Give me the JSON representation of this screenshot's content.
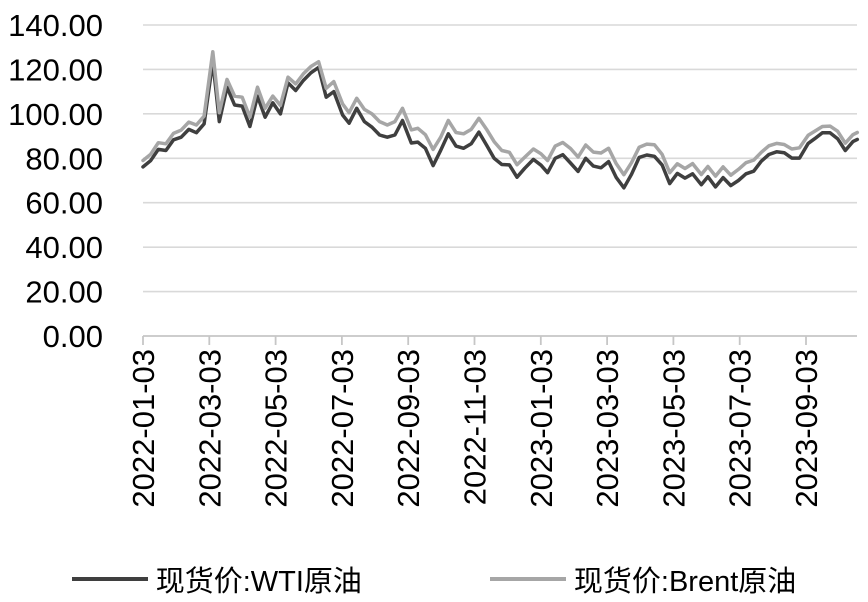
{
  "chart_data": {
    "type": "line",
    "title": "",
    "xlabel": "",
    "ylabel": "",
    "grid": "horizontal",
    "legend_position": "bottom",
    "ylim": [
      0,
      140
    ],
    "yticks": [
      0,
      20,
      40,
      60,
      80,
      100,
      120,
      140
    ],
    "ytick_labels": [
      "0.00",
      "20.00",
      "40.00",
      "60.00",
      "80.00",
      "100.00",
      "120.00",
      "140.00"
    ],
    "xtick_labels": [
      "2022-01-03",
      "2022-03-03",
      "2022-05-03",
      "2022-07-03",
      "2022-09-03",
      "2022-11-03",
      "2023-01-03",
      "2023-03-03",
      "2023-05-03",
      "2023-07-03",
      "2023-09-03"
    ],
    "x": [
      "2022-01-03",
      "2022-01-10",
      "2022-01-17",
      "2022-01-24",
      "2022-01-31",
      "2022-02-07",
      "2022-02-14",
      "2022-02-21",
      "2022-02-28",
      "2022-03-08",
      "2022-03-14",
      "2022-03-21",
      "2022-03-28",
      "2022-04-04",
      "2022-04-11",
      "2022-04-18",
      "2022-04-25",
      "2022-05-02",
      "2022-05-09",
      "2022-05-16",
      "2022-05-23",
      "2022-05-30",
      "2022-06-06",
      "2022-06-13",
      "2022-06-20",
      "2022-06-27",
      "2022-07-05",
      "2022-07-11",
      "2022-07-18",
      "2022-07-25",
      "2022-08-01",
      "2022-08-08",
      "2022-08-15",
      "2022-08-22",
      "2022-08-29",
      "2022-09-06",
      "2022-09-12",
      "2022-09-19",
      "2022-09-26",
      "2022-10-03",
      "2022-10-10",
      "2022-10-17",
      "2022-10-24",
      "2022-10-31",
      "2022-11-07",
      "2022-11-14",
      "2022-11-21",
      "2022-11-28",
      "2022-12-05",
      "2022-12-12",
      "2022-12-19",
      "2022-12-27",
      "2023-01-03",
      "2023-01-09",
      "2023-01-16",
      "2023-01-23",
      "2023-01-30",
      "2023-02-06",
      "2023-02-13",
      "2023-02-20",
      "2023-02-27",
      "2023-03-06",
      "2023-03-13",
      "2023-03-20",
      "2023-03-27",
      "2023-04-03",
      "2023-04-10",
      "2023-04-17",
      "2023-04-24",
      "2023-05-01",
      "2023-05-08",
      "2023-05-15",
      "2023-05-22",
      "2023-05-30",
      "2023-06-05",
      "2023-06-12",
      "2023-06-19",
      "2023-06-26",
      "2023-07-03",
      "2023-07-10",
      "2023-07-17",
      "2023-07-24",
      "2023-07-31",
      "2023-08-07",
      "2023-08-14",
      "2023-08-21",
      "2023-08-28",
      "2023-09-05",
      "2023-09-11",
      "2023-09-18",
      "2023-09-25",
      "2023-10-02",
      "2023-10-09",
      "2023-10-16",
      "2023-10-20"
    ],
    "series": [
      {
        "name": "现货价:WTI原油",
        "color": "#3f3f3f",
        "values": [
          76.1,
          78.9,
          84.0,
          83.5,
          88.3,
          89.5,
          93.0,
          91.5,
          95.5,
          123.7,
          96.5,
          112.0,
          104.0,
          103.5,
          94.3,
          108.0,
          98.5,
          105.0,
          100.0,
          114.0,
          110.5,
          115.0,
          118.5,
          120.9,
          107.5,
          110.0,
          99.5,
          95.8,
          102.5,
          96.5,
          94.0,
          90.5,
          89.5,
          90.5,
          97.0,
          86.9,
          87.3,
          84.5,
          76.7,
          83.6,
          91.0,
          85.5,
          84.5,
          86.5,
          91.8,
          86.0,
          80.0,
          77.2,
          77.0,
          71.5,
          75.5,
          79.5,
          76.9,
          73.5,
          80.0,
          81.6,
          77.9,
          74.1,
          80.0,
          76.5,
          75.7,
          78.5,
          71.3,
          66.7,
          72.8,
          80.4,
          81.5,
          80.9,
          77.0,
          68.6,
          73.2,
          71.1,
          73.0,
          68.1,
          71.7,
          67.1,
          71.3,
          67.7,
          70.0,
          73.0,
          74.2,
          78.7,
          81.7,
          82.9,
          82.5,
          80.1,
          80.1,
          86.7,
          88.8,
          91.5,
          91.5,
          88.8,
          83.5,
          87.5,
          88.5
        ]
      },
      {
        "name": "现货价:Brent原油",
        "color": "#a6a6a6",
        "values": [
          79.0,
          81.8,
          87.0,
          86.5,
          91.2,
          92.7,
          96.3,
          95.0,
          99.0,
          128.0,
          100.5,
          115.5,
          108.0,
          107.5,
          98.5,
          112.0,
          102.5,
          108.0,
          103.8,
          116.5,
          113.5,
          118.0,
          121.3,
          123.5,
          111.5,
          114.5,
          104.5,
          100.5,
          107.0,
          102.0,
          100.0,
          96.5,
          95.0,
          96.5,
          102.5,
          92.8,
          93.5,
          90.6,
          84.0,
          89.5,
          97.0,
          91.6,
          91.0,
          93.0,
          98.0,
          93.1,
          87.5,
          83.5,
          82.7,
          77.1,
          80.5,
          84.2,
          82.0,
          79.0,
          85.5,
          87.1,
          84.4,
          80.6,
          86.0,
          82.8,
          82.4,
          84.5,
          77.5,
          72.6,
          78.0,
          85.0,
          86.4,
          86.1,
          81.8,
          73.5,
          77.5,
          75.4,
          77.6,
          72.7,
          76.3,
          72.0,
          76.1,
          72.4,
          75.0,
          78.0,
          79.2,
          82.7,
          85.6,
          86.7,
          86.2,
          84.2,
          84.7,
          90.4,
          92.2,
          94.3,
          94.5,
          92.2,
          86.8,
          90.6,
          91.6
        ]
      }
    ],
    "colors": {
      "gridline": "#d9d9d9",
      "axis": "#c6c6c6",
      "text": "#000000",
      "background": "#ffffff"
    }
  }
}
